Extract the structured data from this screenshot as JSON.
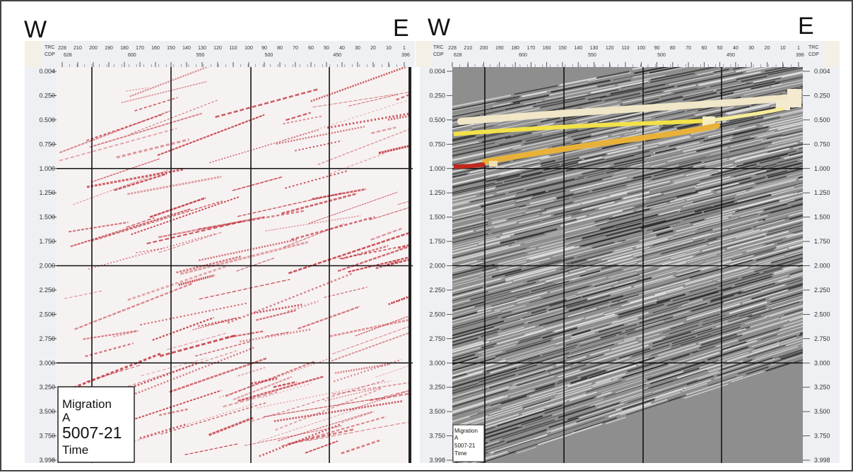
{
  "left_panel": {
    "west_label": "W",
    "east_label": "E",
    "trc_label": "TRC",
    "cdp_label": "CDP",
    "trc_ticks": [
      "228",
      "210",
      "200",
      "190",
      "180",
      "170",
      "160",
      "150",
      "140",
      "130",
      "120",
      "110",
      "100",
      "90",
      "80",
      "70",
      "60",
      "50",
      "40",
      "30",
      "20",
      "10",
      "1"
    ],
    "cdp_ticks": [
      "628",
      "600",
      "550",
      "500",
      "450",
      "396"
    ],
    "time_ticks": [
      "0.004",
      "0.250",
      "0.500",
      "0.750",
      "1.000",
      "1.250",
      "1.500",
      "1.750",
      "2.000",
      "2.250",
      "2.500",
      "2.750",
      "3.000",
      "3.250",
      "3.500",
      "3.750",
      "3.998"
    ],
    "info_box": {
      "line1": "Migration",
      "line2": "A",
      "line3": "5007-21",
      "line4": "Time"
    },
    "colors": {
      "trace": "#c0303a",
      "background": "#f7f2f2"
    }
  },
  "right_panel": {
    "west_label": "W",
    "east_label": "E",
    "trc_label": "TRC",
    "cdp_label": "CDP",
    "trc_ticks": [
      "228",
      "210",
      "200",
      "190",
      "180",
      "170",
      "160",
      "150",
      "140",
      "130",
      "120",
      "110",
      "100",
      "90",
      "80",
      "70",
      "60",
      "50",
      "40",
      "30",
      "20",
      "10",
      "1"
    ],
    "cdp_ticks": [
      "628",
      "600",
      "550",
      "500",
      "450",
      "396"
    ],
    "time_ticks": [
      "0.004",
      "0.250",
      "0.500",
      "0.750",
      "1.000",
      "1.250",
      "1.500",
      "1.750",
      "2.000",
      "2.250",
      "2.500",
      "2.750",
      "3.000",
      "3.250",
      "3.500",
      "3.750",
      "3.998"
    ],
    "info_box": {
      "line1": "Migration",
      "line2": "A",
      "line3": "5007-21",
      "line4": "Time"
    },
    "colors": {
      "background": "#8e8e8e",
      "horizon_upper": "#f0e6c8",
      "horizon_middle": "#f2e24a",
      "horizon_lower": "#e8b23a",
      "horizon_red": "#c0281e"
    }
  }
}
